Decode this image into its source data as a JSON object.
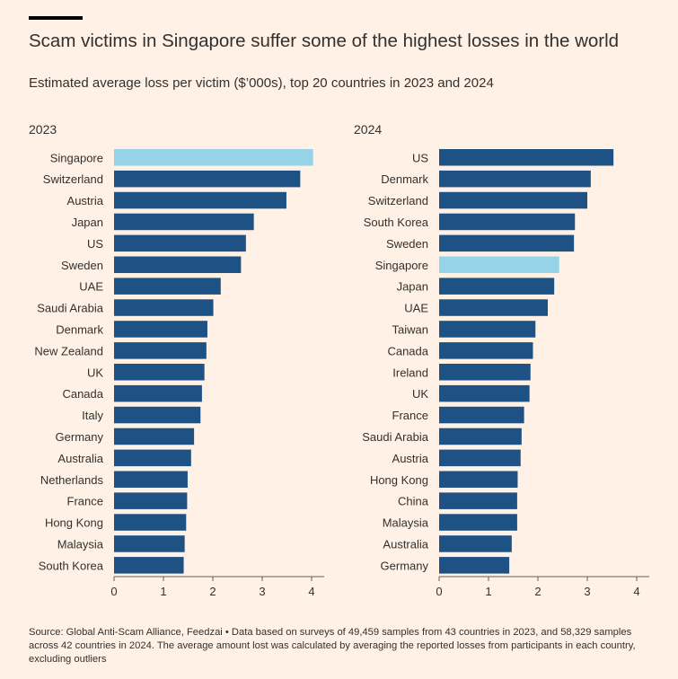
{
  "header": {
    "title": "Scam victims in Singapore suffer some of the highest losses in the world",
    "subtitle": "Estimated average loss per victim ($’000s), top 20 countries in 2023 and 2024"
  },
  "source": "Source: Global Anti-Scam Alliance, Feedzai • Data based on surveys of 49,459 samples from 43 countries in 2023, and 58,329 samples across 42 countries in 2024. The average amount lost was calculated by averaging the reported losses from participants in each country, excluding outliers",
  "colors": {
    "bar": "#1f5284",
    "highlight": "#96d2e8",
    "axis": "#66605c",
    "text": "#33302e"
  },
  "chart_data": [
    {
      "type": "bar",
      "orientation": "horizontal",
      "title": "2023",
      "highlight": "Singapore",
      "categories": [
        "Singapore",
        "Switzerland",
        "Austria",
        "Japan",
        "US",
        "Sweden",
        "UAE",
        "Saudi Arabia",
        "Denmark",
        "New Zealand",
        "UK",
        "Canada",
        "Italy",
        "Germany",
        "Australia",
        "Netherlands",
        "France",
        "Hong Kong",
        "Malaysia",
        "South Korea"
      ],
      "values": [
        4.03,
        3.77,
        3.49,
        2.83,
        2.67,
        2.57,
        2.16,
        2.01,
        1.89,
        1.87,
        1.83,
        1.78,
        1.75,
        1.62,
        1.56,
        1.49,
        1.48,
        1.46,
        1.43,
        1.41
      ],
      "xlim": [
        0,
        4.25
      ],
      "xticks": [
        0,
        1,
        2,
        3,
        4
      ]
    },
    {
      "type": "bar",
      "orientation": "horizontal",
      "title": "2024",
      "highlight": "Singapore",
      "categories": [
        "US",
        "Denmark",
        "Switzerland",
        "South Korea",
        "Sweden",
        "Singapore",
        "Japan",
        "UAE",
        "Taiwan",
        "Canada",
        "Ireland",
        "UK",
        "France",
        "Saudi Arabia",
        "Austria",
        "Hong Kong",
        "China",
        "Malaysia",
        "Australia",
        "Germany"
      ],
      "values": [
        3.53,
        3.07,
        3.0,
        2.75,
        2.73,
        2.43,
        2.33,
        2.2,
        1.95,
        1.9,
        1.85,
        1.83,
        1.72,
        1.67,
        1.65,
        1.59,
        1.58,
        1.58,
        1.47,
        1.42
      ],
      "xlim": [
        0,
        4.25
      ],
      "xticks": [
        0,
        1,
        2,
        3,
        4
      ]
    }
  ]
}
